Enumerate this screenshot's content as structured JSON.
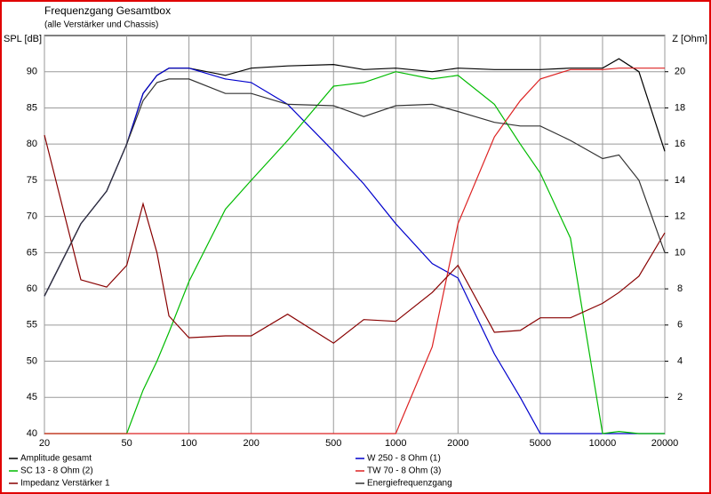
{
  "chart_data": {
    "type": "line",
    "title": "Frequenzgang Gesamtbox",
    "subtitle": "(alle Verstärker und Chassis)",
    "ylabel": "SPL [dB]",
    "y2label": "Z [Ohm]",
    "xscale": "log",
    "grid": true,
    "x": [
      20,
      30,
      40,
      50,
      60,
      70,
      80,
      100,
      150,
      200,
      300,
      500,
      700,
      1000,
      1500,
      2000,
      3000,
      4000,
      5000,
      7000,
      10000,
      12000,
      15000,
      20000
    ],
    "xlim": [
      20,
      20000
    ],
    "xticks": [
      20,
      50,
      100,
      200,
      500,
      1000,
      2000,
      5000,
      10000,
      20000
    ],
    "ylim": [
      40,
      95
    ],
    "yticks": [
      40,
      45,
      50,
      55,
      60,
      65,
      70,
      75,
      80,
      85,
      90
    ],
    "y2lim": [
      0,
      22
    ],
    "y2ticks": [
      2,
      4,
      6,
      8,
      10,
      12,
      14,
      16,
      18,
      20
    ],
    "series": [
      {
        "name": "Amplitude gesamt",
        "color": "#000000",
        "values": [
          59,
          69,
          73.5,
          80,
          87,
          89.5,
          90.5,
          90.5,
          89.5,
          90.5,
          90.8,
          91,
          90.3,
          90.5,
          90,
          90.5,
          90.3,
          90.3,
          90.3,
          90.5,
          90.5,
          91.8,
          90,
          79
        ]
      },
      {
        "name": "W 250 - 8 Ohm (1)",
        "color": "#0000cc",
        "values": [
          59,
          69,
          73.5,
          80,
          87,
          89.5,
          90.5,
          90.5,
          89,
          88.5,
          85.5,
          79,
          74.5,
          69,
          63.5,
          61.5,
          51,
          45,
          40,
          40,
          40,
          40,
          40,
          40
        ]
      },
      {
        "name": "SC 13 - 8 Ohm (2)",
        "color": "#00bb00",
        "values": [
          40,
          40,
          40,
          40,
          46,
          50,
          54,
          61,
          71,
          75,
          80.5,
          88,
          88.5,
          90,
          89,
          89.5,
          85.5,
          80,
          76,
          67,
          40,
          40.3,
          40,
          40
        ]
      },
      {
        "name": "TW 70 - 8 Ohm (3)",
        "color": "#dd2222",
        "values": [
          40,
          40,
          40,
          40,
          40,
          40,
          40,
          40,
          40,
          40,
          40,
          40,
          40,
          40,
          52,
          69,
          81,
          86,
          89,
          90.3,
          90.3,
          90.5,
          90.5,
          90.5
        ]
      },
      {
        "name": "Impedanz Verstärker 1",
        "color": "#880000",
        "axis": "y2",
        "values": [
          16.5,
          8.5,
          8.1,
          9.3,
          12.7,
          10,
          6.5,
          5.3,
          5.4,
          5.4,
          6.6,
          5,
          6.3,
          6.2,
          7.8,
          9.3,
          5.6,
          5.7,
          6.4,
          6.4,
          7.2,
          7.8,
          8.7,
          11.1
        ]
      },
      {
        "name": "Energiefrequenzgang",
        "color": "#333333",
        "values": [
          59,
          69,
          73.5,
          80,
          86,
          88.5,
          89,
          89,
          87,
          87,
          85.5,
          85.3,
          83.8,
          85.3,
          85.5,
          84.5,
          83,
          82.5,
          82.5,
          80.5,
          78,
          78.5,
          75,
          65
        ]
      }
    ]
  }
}
